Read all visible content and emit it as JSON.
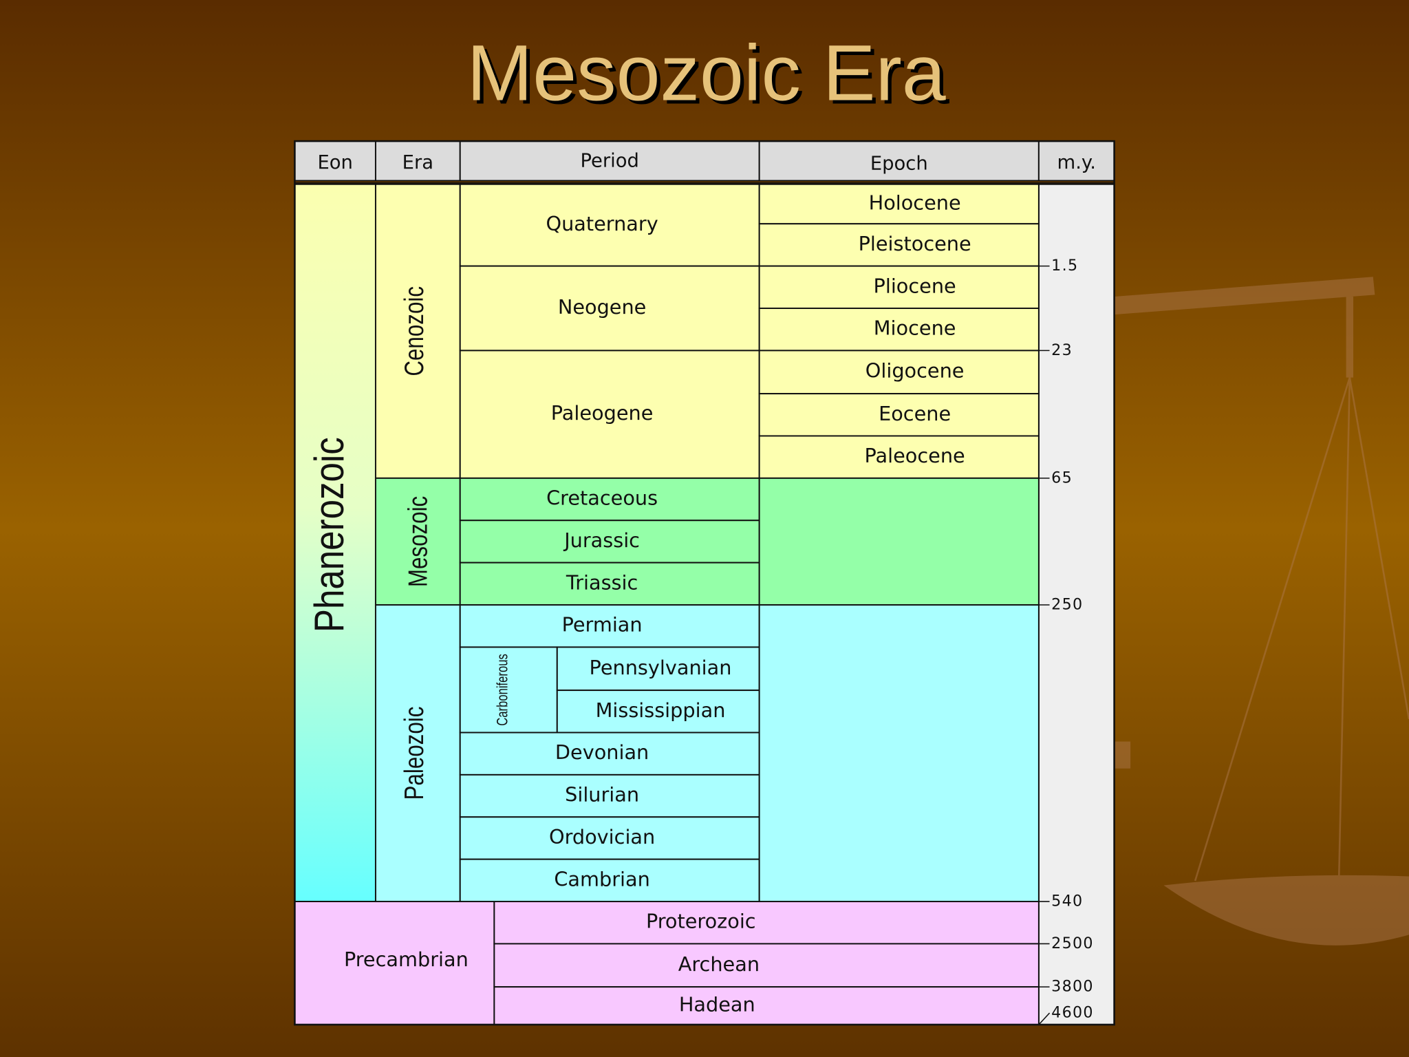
{
  "title": "Mesozoic Era",
  "table": {
    "header": [
      "Eon",
      "Era",
      "Period",
      "Epoch",
      "m.y."
    ],
    "eons": [
      "Phanerozoic",
      "Precambrian"
    ],
    "eras": [
      "Cenozoic",
      "Mesozoic",
      "Paleozoic",
      "Proterozoic",
      "Archean",
      "Hadean"
    ],
    "periods": [
      "Quaternary",
      "Neogene",
      "Paleogene",
      "Cretaceous",
      "Jurassic",
      "Triassic",
      "Permian",
      "Carboniferous",
      "Pennsylvanian",
      "Mississippian",
      "Devonian",
      "Silurian",
      "Ordovician",
      "Cambrian"
    ],
    "epochs": [
      "Holocene",
      "Pleistocene",
      "Pliocene",
      "Miocene",
      "Oligocene",
      "Eocene",
      "Paleocene"
    ],
    "my": [
      1.5,
      23,
      65,
      250,
      540,
      2500,
      3800,
      4600
    ]
  }
}
